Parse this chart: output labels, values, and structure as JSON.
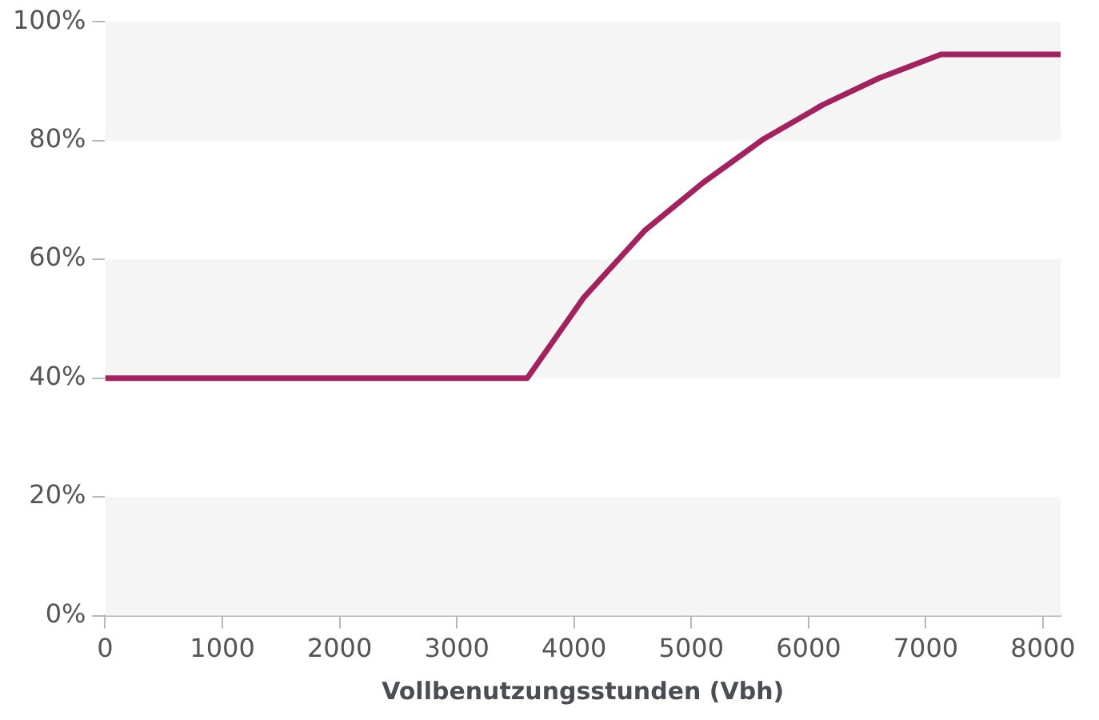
{
  "chart_data": {
    "type": "line",
    "xlabel": "Vollbenutzungsstunden (Vbh)",
    "x": [
      0,
      3600,
      4080,
      4600,
      5100,
      5620,
      6120,
      6600,
      7130,
      8150
    ],
    "series": [
      {
        "color": "#a3215f",
        "values": [
          40,
          40,
          53.5,
          64.8,
          72.9,
          80.3,
          86,
          90.5,
          94.5,
          94.5
        ]
      }
    ],
    "xlim": [
      0,
      8150
    ],
    "xticks": [
      0,
      1000,
      2000,
      3000,
      4000,
      5000,
      6000,
      7000,
      8000
    ],
    "ylim": [
      0,
      100
    ],
    "yticks": [
      {
        "value": 0,
        "label": "0%"
      },
      {
        "value": 20,
        "label": "20%"
      },
      {
        "value": 40,
        "label": "40%"
      },
      {
        "value": 60,
        "label": "60%"
      },
      {
        "value": 80,
        "label": "80%"
      },
      {
        "value": 100,
        "label": "100%"
      }
    ],
    "bands": [
      {
        "axis": "y",
        "from": 0,
        "to": 20,
        "color": "#f4f5f4"
      },
      {
        "axis": "y",
        "from": 40,
        "to": 60,
        "color": "#f4f5f4"
      },
      {
        "axis": "y",
        "from": 80,
        "to": 100,
        "color": "#f4f5f4"
      }
    ],
    "grid": false,
    "legend": false,
    "marker": "none",
    "line_style": "solid"
  }
}
